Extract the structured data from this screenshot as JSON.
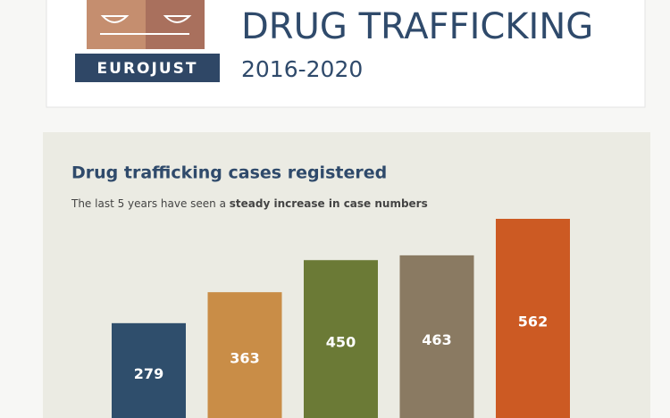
{
  "header": {
    "logo_text": "EUROJUST",
    "title": "DRUG TRAFFICKING",
    "period": "2016-2020"
  },
  "chart_data": {
    "type": "bar",
    "title": "Drug trafficking cases registered",
    "subtitle": {
      "text": "The last 5 years have seen a",
      "emphasis": "steady increase in case numbers"
    },
    "values": [
      279,
      363,
      450,
      463,
      562
    ],
    "colors": [
      "#2f4e6c",
      "#c98d47",
      "#6b7a36",
      "#8a7a62",
      "#cc5a23"
    ],
    "label_color": "#ffffff",
    "background": "#ebebe3"
  }
}
